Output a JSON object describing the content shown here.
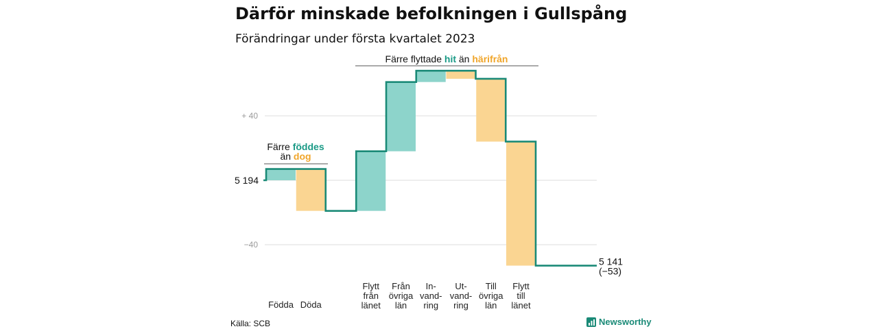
{
  "title": "Därför minskade befolkningen i Gullspång",
  "subtitle": "Förändringar under första kvartalet 2023",
  "source": "Källa: SCB",
  "brand": "Newsworthy",
  "colors": {
    "increase": "#8dd4cb",
    "decrease": "#fad592",
    "line": "#1a8a77",
    "teal_text": "#1a9a86",
    "orange_text": "#f0a52a",
    "grid": "#dddddd",
    "tick_text": "#9a9a9a"
  },
  "annotations": {
    "births": {
      "line1_prefix": "Färre",
      "line1_highlight": "föddes",
      "line2_prefix": "än",
      "line2_highlight": "dog"
    },
    "moves": {
      "prefix": "Färre flyttade",
      "highlight1": "hit",
      "middle": "än",
      "highlight2": "härifrån"
    }
  },
  "chart_data": {
    "type": "waterfall",
    "title": "Därför minskade befolkningen i Gullspång",
    "subtitle": "Förändringar under första kvartalet 2023",
    "start_value": 5194,
    "start_label": "5 194",
    "end_value": 5141,
    "end_label": "5 141",
    "end_change_label": "(−53)",
    "baseline": 5194,
    "yticks": [
      {
        "offset": 40,
        "label": "+ 40"
      },
      {
        "offset": 0,
        "label": ""
      },
      {
        "offset": -40,
        "label": "−40"
      }
    ],
    "ylim_offset": [
      -50,
      70
    ],
    "steps": [
      {
        "label": [
          "Födda"
        ],
        "value": 7,
        "kind": "increase"
      },
      {
        "label": [
          "Döda"
        ],
        "value": -26,
        "kind": "decrease"
      },
      {
        "label": [
          "Flytt",
          "från",
          "länet"
        ],
        "value": 37,
        "kind": "increase"
      },
      {
        "label": [
          "Från",
          "övriga",
          "län"
        ],
        "value": 43,
        "kind": "increase"
      },
      {
        "label": [
          "In-",
          "vand-",
          "ring"
        ],
        "value": 7,
        "kind": "increase"
      },
      {
        "label": [
          "Ut-",
          "vand-",
          "ring"
        ],
        "value": -5,
        "kind": "decrease"
      },
      {
        "label": [
          "Till",
          "övriga",
          "län"
        ],
        "value": -39,
        "kind": "decrease"
      },
      {
        "label": [
          "Flytt",
          "till",
          "länet"
        ],
        "value": -77,
        "kind": "decrease"
      }
    ]
  }
}
